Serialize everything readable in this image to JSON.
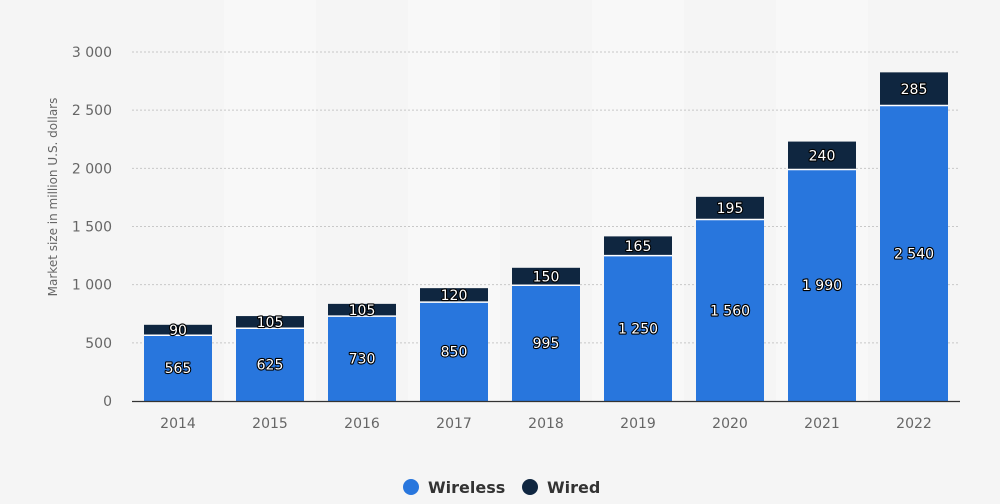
{
  "chart_data": {
    "type": "bar",
    "stacked": true,
    "categories": [
      "2014",
      "2015",
      "2016",
      "2017",
      "2018",
      "2019",
      "2020",
      "2021",
      "2022"
    ],
    "series": [
      {
        "name": "Wireless",
        "color": "#2876dd",
        "values": [
          565,
          625,
          730,
          850,
          995,
          1250,
          1560,
          1990,
          2540
        ]
      },
      {
        "name": "Wired",
        "color": "#0f2640",
        "values": [
          90,
          105,
          105,
          120,
          150,
          165,
          195,
          240,
          285
        ]
      }
    ],
    "value_labels": [
      [
        "565",
        "625",
        "730",
        "850",
        "995",
        "1 250",
        "1 560",
        "1 990",
        "2 540"
      ],
      [
        "90",
        "105",
        "105",
        "120",
        "150",
        "165",
        "195",
        "240",
        "285"
      ]
    ],
    "ylabel": "Market size in million U.S. dollars",
    "xlabel": "",
    "ylim": [
      0,
      3000
    ],
    "yticks": [
      0,
      500,
      1000,
      1500,
      2000,
      2500,
      3000
    ],
    "ytick_labels": [
      "0",
      "500",
      "1 000",
      "1 500",
      "2 000",
      "2 500",
      "3 000"
    ],
    "grid": true,
    "legend_position": "bottom-center"
  }
}
